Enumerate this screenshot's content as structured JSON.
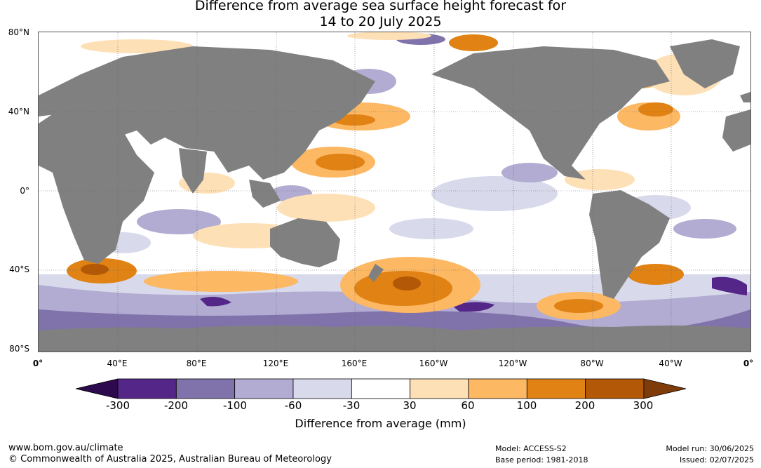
{
  "title_line1": "Difference from average sea surface height forecast for",
  "title_line2": "14 to 20 July 2025",
  "lat_labels": [
    "80°N",
    "40°N",
    "0°",
    "40°S",
    "80°S"
  ],
  "lon_labels": [
    "0°",
    "40°E",
    "80°E",
    "120°E",
    "160°E",
    "160°W",
    "120°W",
    "80°W",
    "40°W",
    "0°"
  ],
  "colorbar": {
    "ticks": [
      "-300",
      "-200",
      "-100",
      "-60",
      "-30",
      "30",
      "60",
      "100",
      "200",
      "300"
    ],
    "colors": [
      "#2d0a4e",
      "#542688",
      "#8073ac",
      "#b2abd2",
      "#d8daeb",
      "#ffffff",
      "#fee0b6",
      "#fdb863",
      "#e08214",
      "#b35806",
      "#7f3b08"
    ],
    "label": "Difference from average (mm)"
  },
  "land_color": "#808080",
  "footer": {
    "website": "www.bom.gov.au/climate",
    "copyright": "© Commonwealth of Australia 2025, Australian Bureau of Meteorology",
    "model": "Model: ACCESS-S2",
    "base_period": "Base period: 1981-2018",
    "model_run": "Model run: 30/06/2025",
    "issued": "Issued: 02/07/2025"
  }
}
